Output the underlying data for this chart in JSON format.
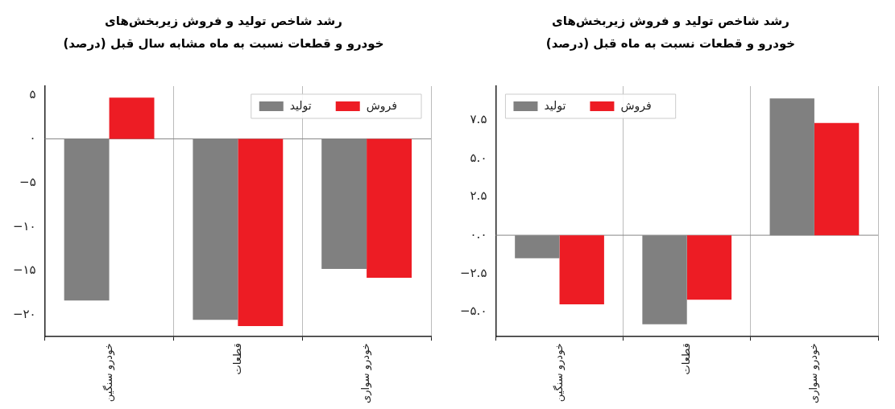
{
  "chart_data": [
    {
      "type": "bar",
      "title": "رشد شاخص تولید و فروش زیربخش‌های\nخودرو و قطعات نسبت به ماه مشابه سال قبل (درصد)",
      "categories": [
        "خودرو سنگین",
        "قطعات",
        "خودرو سواری"
      ],
      "series": [
        {
          "name": "تولید",
          "color": "#808080",
          "values": [
            -18.4,
            -20.6,
            -14.8
          ]
        },
        {
          "name": "فروش",
          "color": "#ed1c24",
          "values": [
            4.7,
            -21.3,
            -15.8
          ]
        }
      ],
      "ylim": [
        -22.5,
        6
      ],
      "yticks": [
        {
          "value": 5,
          "label": "۵"
        },
        {
          "value": 0,
          "label": "۰"
        },
        {
          "value": -5,
          "label": "−۵"
        },
        {
          "value": -10,
          "label": "−۱۰"
        },
        {
          "value": -15,
          "label": "−۱۵"
        },
        {
          "value": -20,
          "label": "−۲۰"
        }
      ],
      "grid": "x",
      "legend": "top right",
      "ref_lines": [
        {
          "axis": "y",
          "value": 0
        }
      ]
    },
    {
      "type": "bar",
      "title": "رشد شاخص تولید و فروش زیربخش‌های\nخودرو و قطعات نسبت به ماه قبل (درصد)",
      "categories": [
        "خودرو سنگین",
        "قطعات",
        "خودرو سواری"
      ],
      "series": [
        {
          "name": "تولید",
          "color": "#808080",
          "values": [
            -1.5,
            -5.8,
            8.9
          ]
        },
        {
          "name": "فروش",
          "color": "#ed1c24",
          "values": [
            -4.5,
            -4.2,
            7.3
          ]
        }
      ],
      "ylim": [
        -6.6,
        9.7
      ],
      "yticks": [
        {
          "value": 7.5,
          "label": "۷.۵"
        },
        {
          "value": 5,
          "label": "۵.۰"
        },
        {
          "value": 2.5,
          "label": "۲.۵"
        },
        {
          "value": 0,
          "label": "۰.۰"
        },
        {
          "value": -2.5,
          "label": "−۲.۵"
        },
        {
          "value": -5,
          "label": "−۵.۰"
        }
      ],
      "grid": "x",
      "legend": "top left",
      "ref_lines": [
        {
          "axis": "y",
          "value": 0
        }
      ]
    }
  ]
}
